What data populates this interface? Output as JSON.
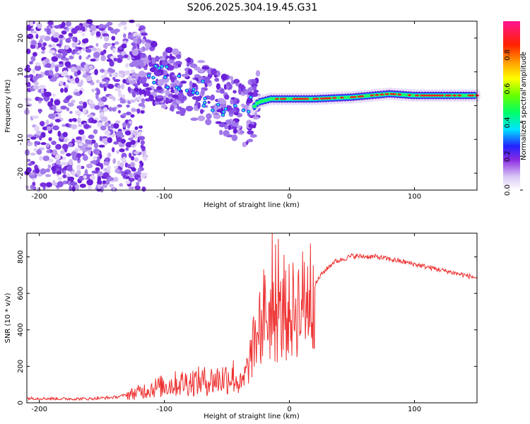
{
  "figure_title": "S206.2025.304.19.45.G31",
  "chart_data": [
    {
      "type": "heatmap",
      "title": "",
      "xlabel": "Height of straight line (km)",
      "ylabel": "Frequency (Hz)",
      "xlim": [
        -210,
        150
      ],
      "ylim": [
        -25,
        25
      ],
      "x_ticks": [
        -200,
        -100,
        0,
        100
      ],
      "y_ticks": [
        -20,
        -10,
        0,
        10,
        20
      ],
      "colorbar": {
        "label": "Normalized spectral amplitude",
        "range": [
          0,
          1
        ],
        "ticks": [
          0.0,
          0.2,
          0.4,
          0.6,
          0.8
        ]
      },
      "ridge": {
        "description_points": [
          {
            "x": -130,
            "y": 13
          },
          {
            "x": -110,
            "y": 10
          },
          {
            "x": -90,
            "y": 7
          },
          {
            "x": -70,
            "y": 4
          },
          {
            "x": -50,
            "y": 0
          },
          {
            "x": -35,
            "y": -3
          },
          {
            "x": -25,
            "y": 1
          },
          {
            "x": -15,
            "y": 2
          },
          {
            "x": 0,
            "y": 2
          },
          {
            "x": 20,
            "y": 2
          },
          {
            "x": 50,
            "y": 2.5
          },
          {
            "x": 80,
            "y": 3.5
          },
          {
            "x": 100,
            "y": 3
          },
          {
            "x": 150,
            "y": 3
          }
        ]
      }
    },
    {
      "type": "line",
      "title": "",
      "xlabel": "Height of straight line (km)",
      "ylabel": "SNR (10 * v/v)",
      "xlim": [
        -210,
        150
      ],
      "ylim": [
        0,
        930
      ],
      "x_ticks": [
        -200,
        -100,
        0,
        100
      ],
      "y_ticks": [
        0,
        200,
        400,
        600,
        800
      ],
      "series": [
        {
          "name": "SNR",
          "color": "#ee3333",
          "envelope": [
            {
              "x": -210,
              "y": 25
            },
            {
              "x": -180,
              "y": 22
            },
            {
              "x": -160,
              "y": 22
            },
            {
              "x": -140,
              "y": 30
            },
            {
              "x": -125,
              "y": 50
            },
            {
              "x": -110,
              "y": 80
            },
            {
              "x": -95,
              "y": 100
            },
            {
              "x": -80,
              "y": 115
            },
            {
              "x": -65,
              "y": 120
            },
            {
              "x": -55,
              "y": 130
            },
            {
              "x": -45,
              "y": 150
            },
            {
              "x": -38,
              "y": 90
            },
            {
              "x": -33,
              "y": 200
            },
            {
              "x": -27,
              "y": 350
            },
            {
              "x": -20,
              "y": 500
            },
            {
              "x": -12,
              "y": 450
            },
            {
              "x": -5,
              "y": 470
            },
            {
              "x": 5,
              "y": 520
            },
            {
              "x": 15,
              "y": 580
            },
            {
              "x": 25,
              "y": 700
            },
            {
              "x": 35,
              "y": 770
            },
            {
              "x": 50,
              "y": 805
            },
            {
              "x": 70,
              "y": 800
            },
            {
              "x": 90,
              "y": 775
            },
            {
              "x": 110,
              "y": 745
            },
            {
              "x": 130,
              "y": 715
            },
            {
              "x": 150,
              "y": 685
            }
          ]
        }
      ]
    }
  ]
}
